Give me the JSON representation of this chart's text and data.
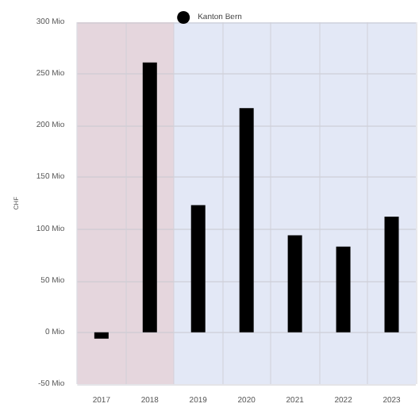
{
  "chart_data": {
    "type": "bar",
    "categories": [
      "2017",
      "2018",
      "2019",
      "2020",
      "2021",
      "2022",
      "2023"
    ],
    "series": [
      {
        "name": "Kanton Bern",
        "color": "#000000",
        "values": [
          -6,
          261,
          123,
          217,
          94,
          83,
          112
        ]
      }
    ],
    "ylabel": "CHF",
    "ylim": [
      -50,
      300
    ],
    "yticks": [
      {
        "value": -50,
        "label": "-50 Mio"
      },
      {
        "value": 0,
        "label": "0 Mio"
      },
      {
        "value": 50,
        "label": "50 Mio"
      },
      {
        "value": 100,
        "label": "100 Mio"
      },
      {
        "value": 150,
        "label": "150 Mio"
      },
      {
        "value": 200,
        "label": "200 Mio"
      },
      {
        "value": 250,
        "label": "250 Mio"
      },
      {
        "value": 300,
        "label": "300 Mio"
      }
    ],
    "bands": [
      {
        "axis": "x",
        "from": "2017",
        "to": "2018",
        "color": "#e5d6dd"
      },
      {
        "axis": "x",
        "from": "2019",
        "to": "2023",
        "color": "#e3e8f6"
      }
    ],
    "grid": true,
    "legend": "top",
    "marker": "circle"
  }
}
